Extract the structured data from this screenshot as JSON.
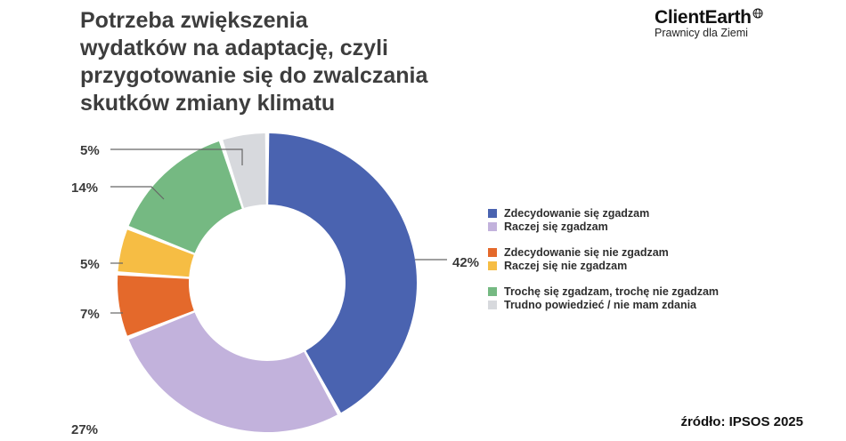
{
  "logo": {
    "name": "ClientEarth",
    "tagline": "Prawnicy dla Ziemi"
  },
  "source": "źródło: IPSOS 2025",
  "chart_data": {
    "type": "pie",
    "donut": true,
    "title_lines": [
      "Potrzeba zwiększenia",
      "wydatków na adaptację, czyli",
      "przygotowanie się do zwalczania",
      "skutków zmiany klimatu"
    ],
    "legend_placement": "right",
    "series": [
      {
        "name": "Zdecydowanie się zgadzam",
        "value": 42,
        "label": "42%",
        "color": "#4a63b0",
        "legend_group": 0
      },
      {
        "name": "Raczej się zgadzam",
        "value": 27,
        "label": "27%",
        "color": "#c2b2dc",
        "legend_group": 0
      },
      {
        "name": "Zdecydowanie się nie zgadzam",
        "value": 7,
        "label": "7%",
        "color": "#e4692b",
        "legend_group": 1
      },
      {
        "name": "Raczej się nie zgadzam",
        "value": 5,
        "label": "5%",
        "color": "#f6bd44",
        "legend_group": 1
      },
      {
        "name": "Trochę się zgadzam, trochę nie zgadzam",
        "value": 14,
        "label": "14%",
        "color": "#75b982",
        "legend_group": 2
      },
      {
        "name": "Trudno powiedzieć / nie mam zdania",
        "value": 5,
        "label": "5%",
        "color": "#d7d9dd",
        "legend_group": 2
      }
    ]
  }
}
